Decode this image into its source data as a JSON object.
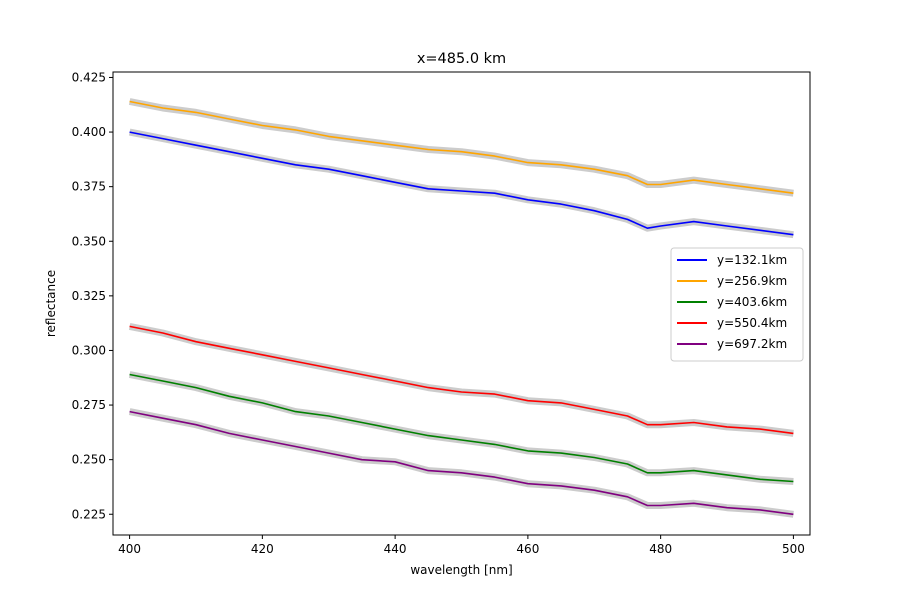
{
  "chart_data": {
    "type": "line",
    "title": "x=485.0 km",
    "xlabel": "wavelength [nm]",
    "ylabel": "reflectance",
    "xlim": [
      397.5,
      502.5
    ],
    "ylim": [
      0.2155,
      0.4275
    ],
    "xticks": [
      400,
      420,
      440,
      460,
      480,
      500
    ],
    "xtick_labels": [
      "400",
      "420",
      "440",
      "460",
      "480",
      "500"
    ],
    "yticks": [
      0.225,
      0.25,
      0.275,
      0.3,
      0.325,
      0.35,
      0.375,
      0.4,
      0.425
    ],
    "ytick_labels": [
      "0.225",
      "0.250",
      "0.275",
      "0.300",
      "0.325",
      "0.350",
      "0.375",
      "0.400",
      "0.425"
    ],
    "grid": false,
    "legend_position": "center-right",
    "uncertainty_band_color": "#cccccc",
    "x": [
      400,
      405,
      410,
      415,
      420,
      425,
      430,
      435,
      440,
      445,
      450,
      455,
      460,
      465,
      470,
      475,
      478,
      480,
      485,
      490,
      495,
      500
    ],
    "series": [
      {
        "name": "y=132.1km",
        "color": "#0000ff",
        "values": [
          0.4,
          0.397,
          0.394,
          0.391,
          0.388,
          0.385,
          0.383,
          0.38,
          0.377,
          0.374,
          0.373,
          0.372,
          0.369,
          0.367,
          0.364,
          0.36,
          0.356,
          0.357,
          0.359,
          0.357,
          0.355,
          0.353
        ]
      },
      {
        "name": "y=256.9km",
        "color": "#ffa500",
        "values": [
          0.414,
          0.411,
          0.409,
          0.406,
          0.403,
          0.401,
          0.398,
          0.396,
          0.394,
          0.392,
          0.391,
          0.389,
          0.386,
          0.385,
          0.383,
          0.38,
          0.376,
          0.376,
          0.378,
          0.376,
          0.374,
          0.372
        ]
      },
      {
        "name": "y=403.6km",
        "color": "#008000",
        "values": [
          0.289,
          0.286,
          0.283,
          0.279,
          0.276,
          0.272,
          0.27,
          0.267,
          0.264,
          0.261,
          0.259,
          0.257,
          0.254,
          0.253,
          0.251,
          0.248,
          0.244,
          0.244,
          0.245,
          0.243,
          0.241,
          0.24
        ]
      },
      {
        "name": "y=550.4km",
        "color": "#ff0000",
        "values": [
          0.311,
          0.308,
          0.304,
          0.301,
          0.298,
          0.295,
          0.292,
          0.289,
          0.286,
          0.283,
          0.281,
          0.28,
          0.277,
          0.276,
          0.273,
          0.27,
          0.266,
          0.266,
          0.267,
          0.265,
          0.264,
          0.262
        ]
      },
      {
        "name": "y=697.2km",
        "color": "#800080",
        "values": [
          0.272,
          0.269,
          0.266,
          0.262,
          0.259,
          0.256,
          0.253,
          0.25,
          0.249,
          0.245,
          0.244,
          0.242,
          0.239,
          0.238,
          0.236,
          0.233,
          0.229,
          0.229,
          0.23,
          0.228,
          0.227,
          0.225
        ]
      }
    ]
  }
}
